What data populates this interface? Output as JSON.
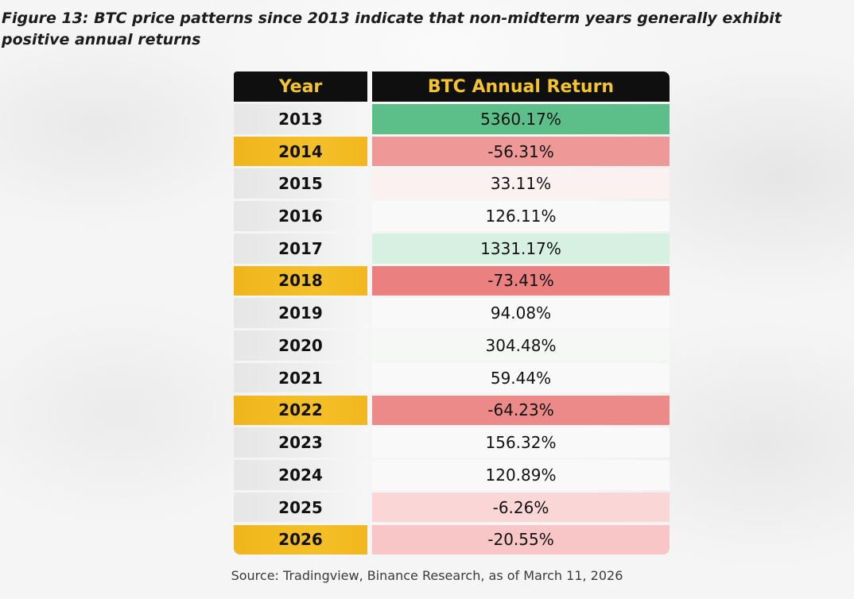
{
  "figure": {
    "title": "Figure 13: BTC price patterns since 2013 indicate that non-midterm years generally exhibit positive annual returns",
    "source": "Source: Tradingview, Binance Research, as of March 11, 2026"
  },
  "table": {
    "headers": {
      "year": "Year",
      "return": "BTC Annual Return"
    },
    "rows": [
      {
        "year": "2013",
        "return": "5360.17%",
        "midterm": false,
        "return_color": "#5cbf8a"
      },
      {
        "year": "2014",
        "return": "-56.31%",
        "midterm": true,
        "return_color": "#ee9898"
      },
      {
        "year": "2015",
        "return": "33.11%",
        "midterm": false,
        "return_color": "#fbf1f1"
      },
      {
        "year": "2016",
        "return": "126.11%",
        "midterm": false,
        "return_color": "#f9f9f9"
      },
      {
        "year": "2017",
        "return": "1331.17%",
        "midterm": false,
        "return_color": "#d6f0e2"
      },
      {
        "year": "2018",
        "return": "-73.41%",
        "midterm": true,
        "return_color": "#ea8080"
      },
      {
        "year": "2019",
        "return": "94.08%",
        "midterm": false,
        "return_color": "#f9f9f9"
      },
      {
        "year": "2020",
        "return": "304.48%",
        "midterm": false,
        "return_color": "#f6f8f6"
      },
      {
        "year": "2021",
        "return": "59.44%",
        "midterm": false,
        "return_color": "#f9f9f9"
      },
      {
        "year": "2022",
        "return": "-64.23%",
        "midterm": true,
        "return_color": "#ec8a8a"
      },
      {
        "year": "2023",
        "return": "156.32%",
        "midterm": false,
        "return_color": "#f9f9f9"
      },
      {
        "year": "2024",
        "return": "120.89%",
        "midterm": false,
        "return_color": "#f9f9f9"
      },
      {
        "year": "2025",
        "return": "-6.26%",
        "midterm": false,
        "return_color": "#fbd6d6"
      },
      {
        "year": "2026",
        "return": "-20.55%",
        "midterm": true,
        "return_color": "#f8c6c6"
      }
    ]
  }
}
